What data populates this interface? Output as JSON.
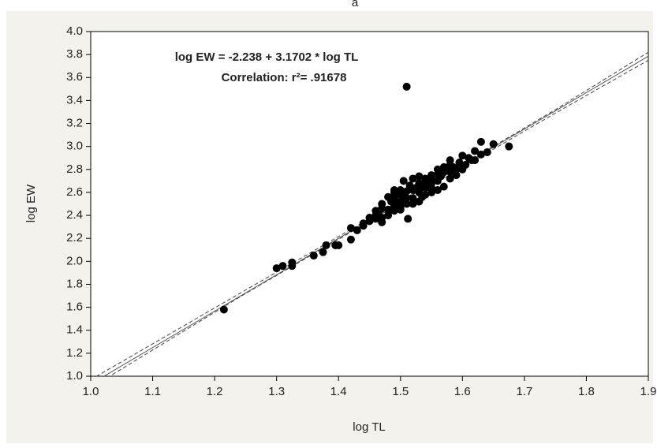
{
  "chart_data": {
    "type": "scatter",
    "panel_label": "a",
    "xlabel": "log TL",
    "ylabel": "log EW",
    "annotations": [
      "log EW = -2.238 + 3.1702 * log TL",
      "Correlation: r²= .91678"
    ],
    "xlim": [
      1.0,
      1.9
    ],
    "ylim": [
      1.0,
      4.0
    ],
    "xticks": [
      {
        "value": 1.0,
        "label": "1.0"
      },
      1.1,
      1.2,
      1.3,
      1.4,
      1.5,
      1.6,
      1.7,
      1.8,
      1.9
    ],
    "yticks": [
      {
        "value": 1.0,
        "label": "1.0"
      },
      1.2,
      1.4,
      1.6,
      1.8,
      {
        "value": 2.0,
        "label": "2.0"
      },
      2.2,
      2.4,
      2.6,
      2.8,
      {
        "value": 3.0,
        "label": "3.0"
      },
      3.2,
      3.4,
      3.6,
      3.8,
      {
        "value": 4.0,
        "label": "4.0"
      }
    ],
    "color": "#000000",
    "fit": {
      "intercept": -2.238,
      "slope": 3.1702,
      "color": "#555555"
    },
    "confidence_band": {
      "x": [
        1.0,
        1.25,
        1.53,
        1.75,
        1.9
      ],
      "lower": [
        0.9,
        1.72,
        2.6,
        3.29,
        3.75
      ],
      "upper": [
        0.97,
        1.75,
        2.62,
        3.32,
        3.82
      ],
      "color": "#444444"
    },
    "x": [
      1.215,
      1.3,
      1.31,
      1.325,
      1.325,
      1.36,
      1.375,
      1.38,
      1.395,
      1.4,
      1.42,
      1.42,
      1.43,
      1.44,
      1.45,
      1.46,
      1.465,
      1.47,
      1.47,
      1.48,
      1.48,
      1.49,
      1.49,
      1.5,
      1.5,
      1.51,
      1.505,
      1.51,
      1.512,
      1.5,
      1.52,
      1.53,
      1.53,
      1.63,
      1.65,
      1.675,
      1.62,
      1.6,
      1.61,
      1.58,
      1.58,
      1.56,
      1.57,
      1.55,
      1.54,
      1.55,
      1.56,
      1.53,
      1.52,
      1.49,
      1.49,
      1.5,
      1.51,
      1.52,
      1.53,
      1.54,
      1.55,
      1.56,
      1.57,
      1.58,
      1.59,
      1.6,
      1.62,
      1.63,
      1.64,
      1.54,
      1.545,
      1.565,
      1.575,
      1.585,
      1.595,
      1.605,
      1.615,
      1.525,
      1.515,
      1.535,
      1.47,
      1.46,
      1.485,
      1.495,
      1.505,
      1.55,
      1.56,
      1.57,
      1.58,
      1.59,
      1.52,
      1.53,
      1.54,
      1.55,
      1.48,
      1.5,
      1.51,
      1.46,
      1.45,
      1.44,
      1.49,
      1.47
    ],
    "y": [
      1.58,
      1.94,
      1.96,
      1.99,
      1.96,
      2.05,
      2.08,
      2.14,
      2.14,
      2.14,
      2.29,
      2.19,
      2.27,
      2.31,
      2.35,
      2.37,
      2.42,
      2.34,
      2.38,
      2.45,
      2.4,
      2.55,
      2.48,
      2.45,
      2.52,
      3.52,
      2.7,
      2.61,
      2.37,
      2.62,
      2.55,
      2.6,
      2.68,
      3.04,
      3.02,
      3.0,
      2.96,
      2.92,
      2.9,
      2.88,
      2.84,
      2.8,
      2.78,
      2.75,
      2.72,
      2.68,
      2.7,
      2.74,
      2.72,
      2.62,
      2.6,
      2.58,
      2.55,
      2.5,
      2.52,
      2.58,
      2.6,
      2.62,
      2.65,
      2.72,
      2.75,
      2.8,
      2.88,
      2.93,
      2.95,
      2.64,
      2.66,
      2.74,
      2.8,
      2.82,
      2.86,
      2.84,
      2.88,
      2.64,
      2.66,
      2.56,
      2.5,
      2.44,
      2.52,
      2.5,
      2.56,
      2.72,
      2.76,
      2.82,
      2.78,
      2.8,
      2.62,
      2.64,
      2.68,
      2.64,
      2.56,
      2.48,
      2.5,
      2.4,
      2.38,
      2.33,
      2.44,
      2.46
    ]
  }
}
